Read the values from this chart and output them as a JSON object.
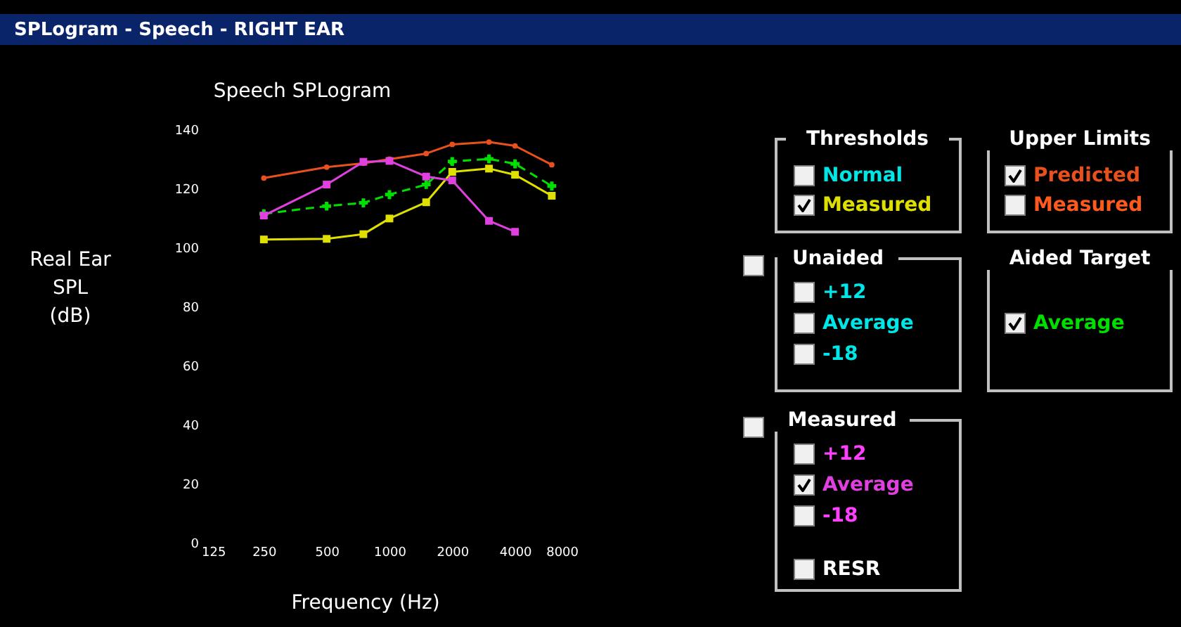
{
  "chart_data": {
    "type": "line",
    "title": "SPLogram - Speech - RIGHT EAR",
    "subtitle": "Speech SPLogram",
    "xlabel": "Frequency (Hz)",
    "ylabel": "Real Ear\nSPL\n(dB)",
    "x": [
      250,
      500,
      750,
      1000,
      1500,
      2000,
      3000,
      4000,
      6000
    ],
    "series": [
      {
        "name": "Predicted",
        "color": "#e8501e",
        "marker": "circle",
        "line_style": "solid",
        "values": [
          123.5,
          127.2,
          128.5,
          129.9,
          131.8,
          134.9,
          135.7,
          134.4,
          128
        ]
      },
      {
        "name": "Measured",
        "color": "#e0e000",
        "marker": "square",
        "line_style": "solid",
        "values": [
          102.7,
          102.9,
          104.5,
          109.8,
          115.3,
          125.6,
          126.7,
          124.6,
          117.5
        ]
      },
      {
        "name": "Average",
        "color": "#00e000",
        "marker": "cross",
        "line_style": "dashed",
        "values": [
          111.4,
          114,
          115.1,
          117.9,
          121.3,
          129.1,
          130,
          128.3,
          120.8
        ]
      },
      {
        "name": "Average",
        "color": "#e040e0",
        "marker": "square",
        "line_style": "solid",
        "values": [
          110.8,
          121.3,
          129,
          129.3,
          124,
          122.7,
          109,
          105.3,
          null
        ]
      }
    ],
    "log": "x",
    "xlim": [
      125,
      8000
    ],
    "xticks": [
      125,
      250,
      500,
      1000,
      2000,
      4000,
      8000
    ],
    "ylim": [
      0,
      140
    ],
    "yticks": [
      0,
      20,
      40,
      60,
      80,
      100,
      120,
      140
    ],
    "grid": false,
    "legend": "right",
    "annotations": [
      "Thresholds",
      "Normal",
      "Upper Limits",
      "Measured",
      "Unaided",
      "+12",
      "Average",
      "-18",
      "Aided Target",
      "Measured",
      "+12",
      "-18",
      "RESR"
    ]
  }
}
